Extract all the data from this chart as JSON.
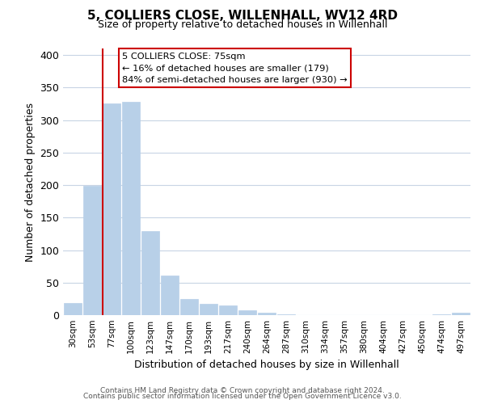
{
  "title": "5, COLLIERS CLOSE, WILLENHALL, WV12 4RD",
  "subtitle": "Size of property relative to detached houses in Willenhall",
  "xlabel": "Distribution of detached houses by size in Willenhall",
  "ylabel": "Number of detached properties",
  "bin_labels": [
    "30sqm",
    "53sqm",
    "77sqm",
    "100sqm",
    "123sqm",
    "147sqm",
    "170sqm",
    "193sqm",
    "217sqm",
    "240sqm",
    "264sqm",
    "287sqm",
    "310sqm",
    "334sqm",
    "357sqm",
    "380sqm",
    "404sqm",
    "427sqm",
    "450sqm",
    "474sqm",
    "497sqm"
  ],
  "bar_heights": [
    19,
    199,
    325,
    328,
    129,
    61,
    25,
    17,
    15,
    8,
    4,
    1,
    0,
    0,
    0,
    0,
    0,
    0,
    0,
    1,
    4
  ],
  "bar_color": "#b8d0e8",
  "vline_bar_index": 2,
  "vline_color": "#cc0000",
  "ylim": [
    0,
    410
  ],
  "yticks": [
    0,
    50,
    100,
    150,
    200,
    250,
    300,
    350,
    400
  ],
  "annotation_title": "5 COLLIERS CLOSE: 75sqm",
  "annotation_line1": "← 16% of detached houses are smaller (179)",
  "annotation_line2": "84% of semi-detached houses are larger (930) →",
  "footer_line1": "Contains HM Land Registry data © Crown copyright and database right 2024.",
  "footer_line2": "Contains public sector information licensed under the Open Government Licence v3.0.",
  "background_color": "#ffffff",
  "grid_color": "#c8d4e4"
}
